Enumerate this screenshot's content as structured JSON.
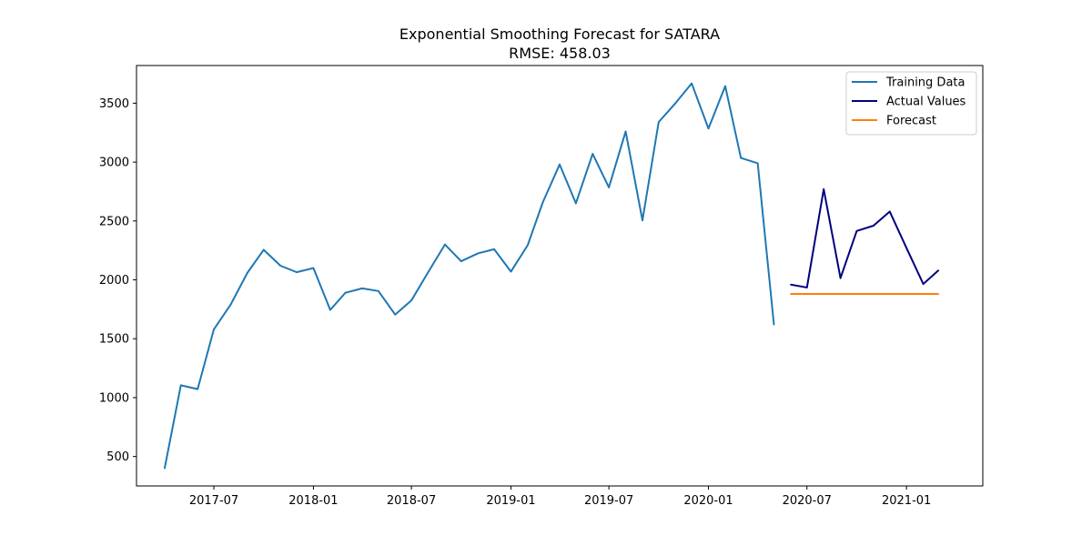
{
  "chart_data": {
    "type": "line",
    "title": "Exponential Smoothing Forecast for SATARA",
    "subtitle": "RMSE: 458.03",
    "xlabel": "",
    "ylabel": "",
    "xlim": [
      "2017-02-08",
      "2021-05-22"
    ],
    "ylim": [
      250,
      3820
    ],
    "x_ticks": [
      "2017-07",
      "2018-01",
      "2018-07",
      "2019-01",
      "2019-07",
      "2020-01",
      "2020-07",
      "2021-01"
    ],
    "y_ticks": [
      500,
      1000,
      1500,
      2000,
      2500,
      3000,
      3500
    ],
    "grid": false,
    "legend_position": "top-right",
    "series": [
      {
        "name": "Training Data",
        "color": "#1f77b4",
        "x": [
          "2017-04",
          "2017-05",
          "2017-06",
          "2017-07",
          "2017-08",
          "2017-09",
          "2017-10",
          "2017-11",
          "2017-12",
          "2018-01",
          "2018-02",
          "2018-03",
          "2018-04",
          "2018-05",
          "2018-06",
          "2018-07",
          "2018-08",
          "2018-09",
          "2018-10",
          "2018-11",
          "2018-12",
          "2019-01",
          "2019-02",
          "2019-03",
          "2019-04",
          "2019-05",
          "2019-06",
          "2019-07",
          "2019-08",
          "2019-09",
          "2019-10",
          "2019-11",
          "2019-12",
          "2020-01",
          "2020-02",
          "2020-03",
          "2020-04",
          "2020-05"
        ],
        "values": [
          400,
          1105,
          1072,
          1580,
          1790,
          2060,
          2255,
          2120,
          2065,
          2100,
          1745,
          1890,
          1928,
          1905,
          1705,
          1825,
          2065,
          2300,
          2158,
          2225,
          2260,
          2070,
          2295,
          2660,
          2980,
          2650,
          3070,
          2785,
          3260,
          2505,
          3340,
          3500,
          3668,
          3285,
          3645,
          3035,
          2990,
          1620
        ]
      },
      {
        "name": "Actual Values",
        "color": "#000080",
        "x": [
          "2020-06",
          "2020-07",
          "2020-08",
          "2020-09",
          "2020-10",
          "2020-11",
          "2020-12",
          "2021-01",
          "2021-02",
          "2021-03"
        ],
        "values": [
          1960,
          1935,
          2770,
          2015,
          2415,
          2460,
          2580,
          2270,
          1965,
          2080
        ]
      },
      {
        "name": "Forecast",
        "color": "#ff7f0e",
        "x": [
          "2020-06",
          "2020-07",
          "2020-08",
          "2020-09",
          "2020-10",
          "2020-11",
          "2020-12",
          "2021-01",
          "2021-02",
          "2021-03"
        ],
        "values": [
          1880,
          1880,
          1880,
          1880,
          1880,
          1880,
          1880,
          1880,
          1880,
          1880
        ]
      }
    ]
  }
}
